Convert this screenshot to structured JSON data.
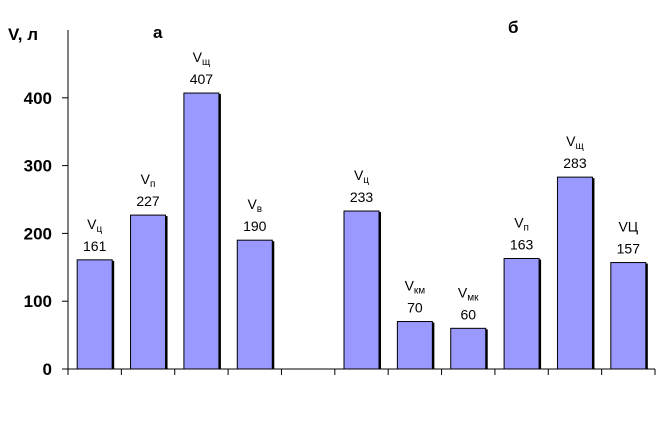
{
  "chart_data": {
    "type": "bar",
    "ylabel": "V, л",
    "ylim": [
      0,
      500
    ],
    "yticks": [
      0,
      100,
      200,
      300,
      400
    ],
    "grid": false,
    "bar_color": "#9999ff",
    "bar_shadow_color": "#000000",
    "panels": [
      {
        "label": "а"
      },
      {
        "label": "б"
      }
    ],
    "bars": [
      {
        "name_base": "V",
        "name_sub": "ц",
        "value": 161
      },
      {
        "name_base": "V",
        "name_sub": "п",
        "value": 227
      },
      {
        "name_base": "V",
        "name_sub": "щ",
        "value": 407
      },
      {
        "name_base": "V",
        "name_sub": "в",
        "value": 190
      },
      null,
      {
        "name_base": "V",
        "name_sub": "ц",
        "value": 233
      },
      {
        "name_base": "V",
        "name_sub": "км",
        "value": 70
      },
      {
        "name_base": "V",
        "name_sub": "мк",
        "value": 60
      },
      {
        "name_base": "V",
        "name_sub": "п",
        "value": 163
      },
      {
        "name_base": "V",
        "name_sub": "щ",
        "value": 283
      },
      {
        "name_base": "VЦ",
        "name_sub": "",
        "value": 157
      }
    ]
  }
}
